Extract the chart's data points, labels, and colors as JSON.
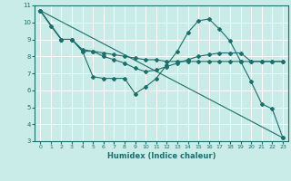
{
  "xlabel": "Humidex (Indice chaleur)",
  "xlim": [
    -0.5,
    23.5
  ],
  "ylim": [
    3,
    11
  ],
  "xticks": [
    0,
    1,
    2,
    3,
    4,
    5,
    6,
    7,
    8,
    9,
    10,
    11,
    12,
    13,
    14,
    15,
    16,
    17,
    18,
    19,
    20,
    21,
    22,
    23
  ],
  "yticks": [
    3,
    4,
    5,
    6,
    7,
    8,
    9,
    10,
    11
  ],
  "background_color": "#c9ece8",
  "grid_color": "#ffffff",
  "line_color": "#1a706a",
  "lines": [
    {
      "x": [
        0,
        1,
        2,
        3,
        4,
        5,
        6,
        7,
        8,
        9,
        10,
        11,
        12,
        13,
        14,
        15,
        16,
        17,
        18,
        19,
        20,
        21,
        22,
        23
      ],
      "y": [
        10.7,
        9.8,
        9.0,
        9.0,
        8.3,
        6.8,
        6.7,
        6.7,
        6.7,
        5.8,
        6.2,
        6.7,
        7.5,
        8.3,
        9.4,
        10.1,
        10.2,
        9.6,
        8.9,
        7.7,
        6.5,
        5.2,
        4.9,
        3.2
      ]
    },
    {
      "x": [
        0,
        23
      ],
      "y": [
        10.7,
        3.2
      ]
    },
    {
      "x": [
        0,
        2,
        3,
        4,
        5,
        6,
        7,
        8,
        9,
        10,
        11,
        12,
        13,
        14,
        15,
        16,
        17,
        18,
        19,
        20,
        21,
        22,
        23
      ],
      "y": [
        10.7,
        9.0,
        9.0,
        8.4,
        8.3,
        8.2,
        8.1,
        8.0,
        7.9,
        7.8,
        7.8,
        7.7,
        7.7,
        7.7,
        7.7,
        7.7,
        7.7,
        7.7,
        7.7,
        7.7,
        7.7,
        7.7,
        7.7
      ]
    },
    {
      "x": [
        0,
        2,
        3,
        4,
        5,
        6,
        7,
        8,
        9,
        10,
        11,
        12,
        13,
        14,
        15,
        16,
        17,
        18,
        19,
        20,
        21,
        22,
        23
      ],
      "y": [
        10.7,
        9.0,
        9.0,
        8.3,
        8.3,
        8.0,
        7.8,
        7.6,
        7.3,
        7.1,
        7.2,
        7.4,
        7.6,
        7.8,
        8.0,
        8.1,
        8.2,
        8.2,
        8.2,
        7.7,
        7.7,
        7.7,
        7.7
      ]
    }
  ]
}
